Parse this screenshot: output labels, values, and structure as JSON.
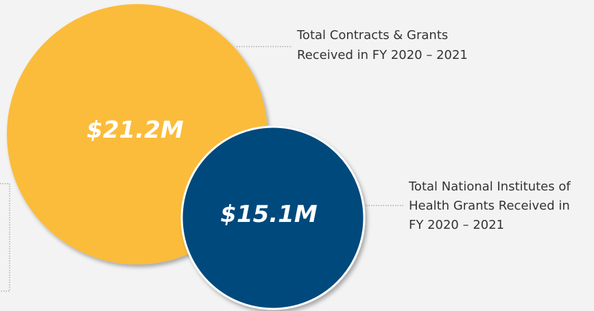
{
  "items": [
    {
      "value": "$21.2M",
      "label_lines": [
        "Total Contracts & Grants",
        "Received in FY 2020 – 2021"
      ]
    },
    {
      "value": "$15.1M",
      "label_lines": [
        "Total National Institutes of",
        "Health Grants Received in",
        "FY 2020 – 2021"
      ]
    }
  ]
}
